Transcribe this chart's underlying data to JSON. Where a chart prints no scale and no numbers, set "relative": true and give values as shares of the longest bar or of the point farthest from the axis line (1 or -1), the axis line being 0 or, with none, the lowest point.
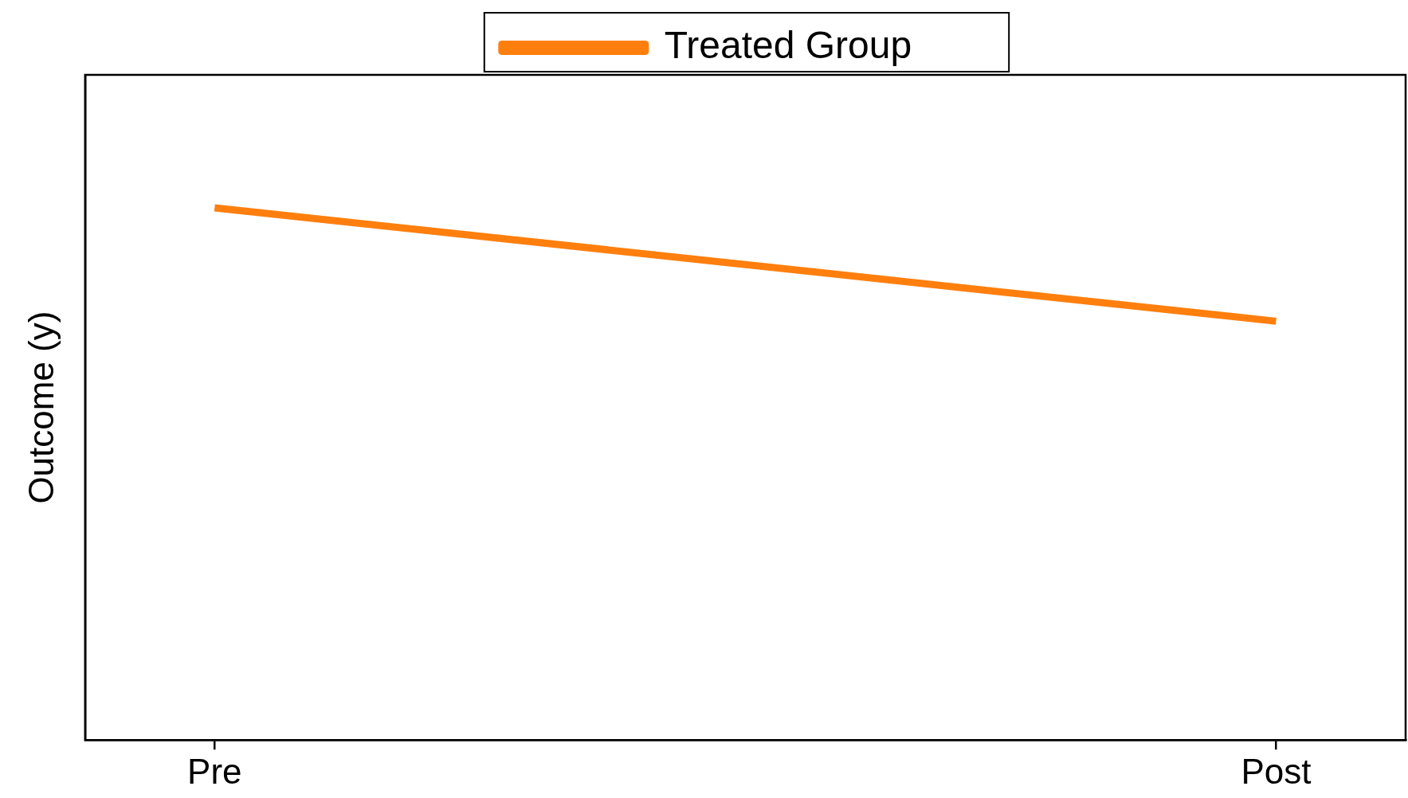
{
  "chart_data": {
    "type": "line",
    "ylabel": "Outcome (y)",
    "categories": [
      "Pre",
      "Post"
    ],
    "relative": true,
    "legend": "top",
    "marker": "none",
    "series": [
      {
        "name": "Treated Group",
        "color": "#ff7f0e",
        "values": [
          1,
          0.787
        ]
      }
    ]
  }
}
